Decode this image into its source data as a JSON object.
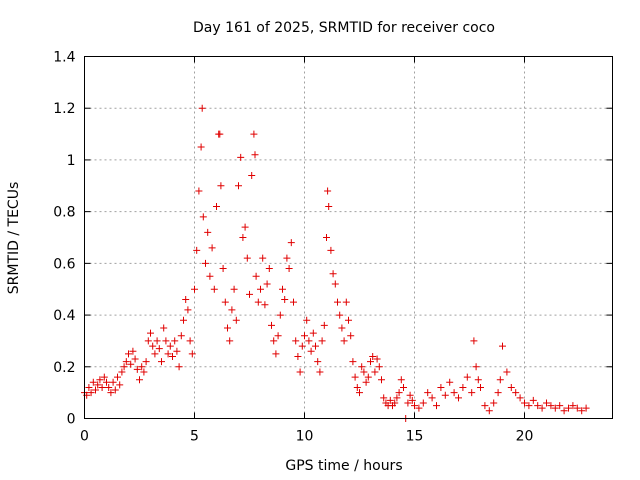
{
  "chart_data": {
    "type": "scatter",
    "title": "Day 161 of 2025, SRMTID for receiver coco",
    "xlabel": "GPS time / hours",
    "ylabel": "SRMTID / TECUs",
    "xlim": [
      0,
      24
    ],
    "ylim": [
      0,
      1.4
    ],
    "xticks": [
      0,
      5,
      10,
      15,
      20
    ],
    "xtick_labels": [
      "0",
      "5",
      "10",
      "15",
      "20"
    ],
    "yticks": [
      0,
      0.2,
      0.4,
      0.6,
      0.8,
      1.0,
      1.2,
      1.4
    ],
    "ytick_labels": [
      "0",
      "0.2",
      "0.4",
      "0.6",
      "0.8",
      "1",
      "1.2",
      "1.4"
    ],
    "grid": true,
    "marker": "+",
    "color": "#e00000",
    "series": [
      {
        "name": "coco",
        "x": [
          0.0,
          0.1,
          0.2,
          0.3,
          0.4,
          0.5,
          0.6,
          0.7,
          0.8,
          0.9,
          1.0,
          1.1,
          1.2,
          1.3,
          1.4,
          1.5,
          1.6,
          1.7,
          1.8,
          1.9,
          2.0,
          2.1,
          2.2,
          2.3,
          2.4,
          2.5,
          2.6,
          2.7,
          2.8,
          2.9,
          3.0,
          3.1,
          3.2,
          3.3,
          3.4,
          3.5,
          3.6,
          3.7,
          3.8,
          3.9,
          4.0,
          4.1,
          4.2,
          4.3,
          4.4,
          4.5,
          4.6,
          4.7,
          4.8,
          4.9,
          5.0,
          5.1,
          5.2,
          5.3,
          5.35,
          5.4,
          5.5,
          5.6,
          5.7,
          5.8,
          5.9,
          6.0,
          6.1,
          6.15,
          6.2,
          6.3,
          6.4,
          6.5,
          6.6,
          6.7,
          6.8,
          6.9,
          7.0,
          7.1,
          7.2,
          7.3,
          7.4,
          7.5,
          7.6,
          7.7,
          7.75,
          7.8,
          7.9,
          8.0,
          8.1,
          8.2,
          8.3,
          8.4,
          8.5,
          8.6,
          8.7,
          8.8,
          8.9,
          9.0,
          9.1,
          9.2,
          9.3,
          9.4,
          9.5,
          9.6,
          9.7,
          9.8,
          9.9,
          10.0,
          10.1,
          10.2,
          10.3,
          10.4,
          10.5,
          10.6,
          10.7,
          10.8,
          10.9,
          11.0,
          11.05,
          11.1,
          11.2,
          11.3,
          11.4,
          11.5,
          11.6,
          11.7,
          11.8,
          11.9,
          12.0,
          12.1,
          12.2,
          12.3,
          12.4,
          12.5,
          12.6,
          12.7,
          12.8,
          12.9,
          13.0,
          13.1,
          13.2,
          13.3,
          13.4,
          13.5,
          13.6,
          13.7,
          13.8,
          13.9,
          14.0,
          14.1,
          14.2,
          14.3,
          14.4,
          14.5,
          14.6,
          14.7,
          14.8,
          14.9,
          15.0,
          15.2,
          15.4,
          15.6,
          15.8,
          16.0,
          16.2,
          16.4,
          16.6,
          16.8,
          17.0,
          17.2,
          17.4,
          17.6,
          17.7,
          17.8,
          17.9,
          18.0,
          18.2,
          18.4,
          18.6,
          18.8,
          18.9,
          19.0,
          19.2,
          19.4,
          19.6,
          19.8,
          20.0,
          20.2,
          20.4,
          20.6,
          20.8,
          21.0,
          21.2,
          21.4,
          21.6,
          21.8,
          22.0,
          22.2,
          22.4,
          22.6,
          22.8
        ],
        "y": [
          0.1,
          0.09,
          0.12,
          0.1,
          0.14,
          0.11,
          0.13,
          0.15,
          0.12,
          0.16,
          0.14,
          0.12,
          0.1,
          0.14,
          0.11,
          0.16,
          0.13,
          0.18,
          0.2,
          0.22,
          0.25,
          0.21,
          0.26,
          0.23,
          0.19,
          0.15,
          0.2,
          0.18,
          0.22,
          0.3,
          0.33,
          0.28,
          0.25,
          0.3,
          0.27,
          0.22,
          0.35,
          0.3,
          0.25,
          0.28,
          0.24,
          0.3,
          0.26,
          0.2,
          0.32,
          0.38,
          0.46,
          0.42,
          0.3,
          0.25,
          0.5,
          0.65,
          0.88,
          1.05,
          1.2,
          0.78,
          0.6,
          0.72,
          0.55,
          0.66,
          0.5,
          0.82,
          1.1,
          1.1,
          0.9,
          0.58,
          0.45,
          0.35,
          0.3,
          0.42,
          0.5,
          0.38,
          0.9,
          1.01,
          0.7,
          0.74,
          0.62,
          0.48,
          0.94,
          1.1,
          1.02,
          0.55,
          0.45,
          0.5,
          0.62,
          0.44,
          0.52,
          0.58,
          0.36,
          0.3,
          0.25,
          0.32,
          0.4,
          0.5,
          0.46,
          0.62,
          0.58,
          0.68,
          0.45,
          0.3,
          0.24,
          0.18,
          0.28,
          0.32,
          0.38,
          0.3,
          0.26,
          0.33,
          0.28,
          0.22,
          0.18,
          0.3,
          0.36,
          0.7,
          0.88,
          0.82,
          0.65,
          0.56,
          0.52,
          0.45,
          0.4,
          0.35,
          0.3,
          0.45,
          0.38,
          0.32,
          0.22,
          0.16,
          0.12,
          0.1,
          0.2,
          0.18,
          0.14,
          0.16,
          0.22,
          0.24,
          0.18,
          0.23,
          0.2,
          0.15,
          0.08,
          0.06,
          0.05,
          0.07,
          0.05,
          0.06,
          0.08,
          0.1,
          0.15,
          0.12,
          0.0,
          0.06,
          0.09,
          0.07,
          0.05,
          0.04,
          0.06,
          0.1,
          0.08,
          0.05,
          0.12,
          0.09,
          0.14,
          0.1,
          0.08,
          0.12,
          0.16,
          0.1,
          0.3,
          0.2,
          0.15,
          0.12,
          0.05,
          0.03,
          0.06,
          0.1,
          0.15,
          0.28,
          0.18,
          0.12,
          0.1,
          0.08,
          0.06,
          0.05,
          0.07,
          0.05,
          0.04,
          0.06,
          0.05,
          0.04,
          0.05,
          0.03,
          0.04,
          0.05,
          0.04,
          0.03,
          0.04
        ]
      }
    ]
  }
}
